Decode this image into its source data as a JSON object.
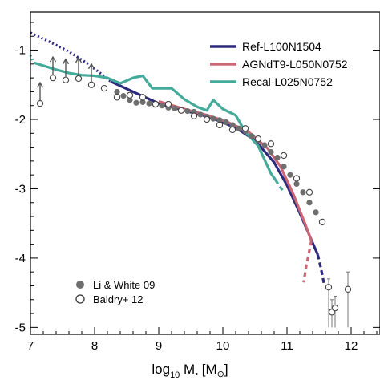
{
  "chart_data": {
    "type": "line",
    "xlabel_parts": {
      "base": "log",
      "sub": "10",
      "var": " M",
      "bullet": "•",
      "units_open": " [M",
      "sun": "⊙",
      "units_close": "]"
    },
    "xlim": [
      7.0,
      12.45
    ],
    "ylim": [
      -5.1,
      -0.45
    ],
    "xticks": [
      "7",
      "8",
      "9",
      "10",
      "11",
      "12"
    ],
    "yticks": [
      "-1",
      "-2",
      "-3",
      "-4",
      "-5"
    ],
    "legend_position": "top-right",
    "series": [
      {
        "name": "Ref-L100N1504",
        "color": "#2d2a7e",
        "solid": [
          [
            8.25,
            -1.45
          ],
          [
            8.6,
            -1.6
          ],
          [
            9.0,
            -1.77
          ],
          [
            9.4,
            -1.87
          ],
          [
            9.8,
            -1.97
          ],
          [
            10.2,
            -2.12
          ],
          [
            10.5,
            -2.3
          ],
          [
            10.8,
            -2.62
          ],
          [
            11.0,
            -2.95
          ],
          [
            11.2,
            -3.35
          ],
          [
            11.4,
            -3.78
          ],
          [
            11.48,
            -3.95
          ]
        ],
        "dotted": [
          [
            7.0,
            -0.75
          ],
          [
            7.3,
            -0.88
          ],
          [
            7.6,
            -1.02
          ],
          [
            7.9,
            -1.2
          ],
          [
            8.1,
            -1.34
          ],
          [
            8.25,
            -1.45
          ]
        ],
        "dashed": [
          [
            11.48,
            -3.95
          ],
          [
            11.53,
            -4.15
          ],
          [
            11.58,
            -4.38
          ]
        ]
      },
      {
        "name": "AGNdT9-L050N0752",
        "color": "#cc6677",
        "solid": [
          [
            9.0,
            -1.74
          ],
          [
            9.4,
            -1.85
          ],
          [
            9.8,
            -1.95
          ],
          [
            10.1,
            -2.05
          ],
          [
            10.4,
            -2.18
          ],
          [
            10.7,
            -2.42
          ],
          [
            10.9,
            -2.68
          ],
          [
            11.1,
            -3.08
          ],
          [
            11.28,
            -3.5
          ],
          [
            11.38,
            -3.75
          ]
        ],
        "dotted": [],
        "dashed": [
          [
            11.38,
            -3.75
          ],
          [
            11.3,
            -4.12
          ],
          [
            11.26,
            -4.35
          ]
        ]
      },
      {
        "name": "Recal-L025N0752",
        "color": "#44aa99",
        "solid": [
          [
            7.05,
            -1.18
          ],
          [
            7.4,
            -1.28
          ],
          [
            7.6,
            -1.33
          ],
          [
            7.8,
            -1.36
          ],
          [
            8.0,
            -1.37
          ],
          [
            8.2,
            -1.4
          ],
          [
            8.4,
            -1.48
          ],
          [
            8.6,
            -1.4
          ],
          [
            8.75,
            -1.37
          ],
          [
            8.9,
            -1.55
          ],
          [
            9.2,
            -1.55
          ],
          [
            9.4,
            -1.71
          ],
          [
            9.6,
            -1.82
          ],
          [
            9.75,
            -1.87
          ],
          [
            9.85,
            -1.72
          ],
          [
            10.0,
            -1.85
          ],
          [
            10.2,
            -1.94
          ],
          [
            10.35,
            -2.18
          ],
          [
            10.55,
            -2.38
          ],
          [
            10.75,
            -2.78
          ],
          [
            10.82,
            -2.87
          ]
        ],
        "dotted": [
          [
            7.0,
            -1.07
          ],
          [
            7.05,
            -1.18
          ]
        ],
        "dashed": [
          [
            10.82,
            -2.87
          ],
          [
            10.88,
            -2.96
          ],
          [
            10.93,
            -3.02
          ]
        ]
      }
    ],
    "li_white_09": {
      "name": "Li & White 09",
      "points": [
        [
          8.35,
          -1.6
        ],
        [
          8.45,
          -1.66
        ],
        [
          8.55,
          -1.72
        ],
        [
          8.65,
          -1.76
        ],
        [
          8.75,
          -1.75
        ],
        [
          8.85,
          -1.77
        ],
        [
          8.95,
          -1.79
        ],
        [
          9.05,
          -1.8
        ],
        [
          9.15,
          -1.83
        ],
        [
          9.25,
          -1.84
        ],
        [
          9.35,
          -1.87
        ],
        [
          9.45,
          -1.88
        ],
        [
          9.55,
          -1.89
        ],
        [
          9.65,
          -1.93
        ],
        [
          9.75,
          -1.96
        ],
        [
          9.85,
          -1.99
        ],
        [
          9.95,
          -2.01
        ],
        [
          10.05,
          -2.04
        ],
        [
          10.15,
          -2.08
        ],
        [
          10.25,
          -2.13
        ],
        [
          10.35,
          -2.17
        ],
        [
          10.45,
          -2.24
        ],
        [
          10.55,
          -2.3
        ],
        [
          10.65,
          -2.37
        ],
        [
          10.75,
          -2.47
        ],
        [
          10.85,
          -2.55
        ],
        [
          10.95,
          -2.68
        ],
        [
          11.05,
          -2.8
        ],
        [
          11.15,
          -2.93
        ],
        [
          11.25,
          -3.05
        ],
        [
          11.35,
          -3.2
        ],
        [
          11.45,
          -3.34
        ]
      ]
    },
    "baldry_12": {
      "name": "Baldry+ 12",
      "points": [
        {
          "x": 7.15,
          "y": -1.77,
          "lower_limit": true
        },
        {
          "x": 7.35,
          "y": -1.4,
          "lower_limit": true
        },
        {
          "x": 7.55,
          "y": -1.43,
          "lower_limit": true
        },
        {
          "x": 7.75,
          "y": -1.41,
          "lower_limit": true
        },
        {
          "x": 7.95,
          "y": -1.5,
          "lower_limit": true
        },
        {
          "x": 8.15,
          "y": -1.55
        },
        {
          "x": 8.35,
          "y": -1.68
        },
        {
          "x": 8.55,
          "y": -1.65
        },
        {
          "x": 8.75,
          "y": -1.68
        },
        {
          "x": 8.95,
          "y": -1.78
        },
        {
          "x": 9.15,
          "y": -1.78
        },
        {
          "x": 9.35,
          "y": -1.87
        },
        {
          "x": 9.55,
          "y": -1.95
        },
        {
          "x": 9.75,
          "y": -2.0
        },
        {
          "x": 9.95,
          "y": -2.08
        },
        {
          "x": 10.15,
          "y": -2.15
        },
        {
          "x": 10.35,
          "y": -2.13
        },
        {
          "x": 10.55,
          "y": -2.28
        },
        {
          "x": 10.75,
          "y": -2.35
        },
        {
          "x": 10.95,
          "y": -2.52
        },
        {
          "x": 11.15,
          "y": -2.85
        },
        {
          "x": 11.35,
          "y": -3.05
        },
        {
          "x": 11.55,
          "y": -3.48
        },
        {
          "x": 11.65,
          "y": -4.42,
          "err_lo": -5.0,
          "err_hi": -4.3
        },
        {
          "x": 11.7,
          "y": -4.78,
          "err_lo": -5.0,
          "err_hi": -4.6
        },
        {
          "x": 11.75,
          "y": -4.72,
          "err_lo": -5.0,
          "err_hi": -4.55
        },
        {
          "x": 11.95,
          "y": -4.45,
          "err_lo": -5.0,
          "err_hi": -4.2
        }
      ]
    }
  }
}
